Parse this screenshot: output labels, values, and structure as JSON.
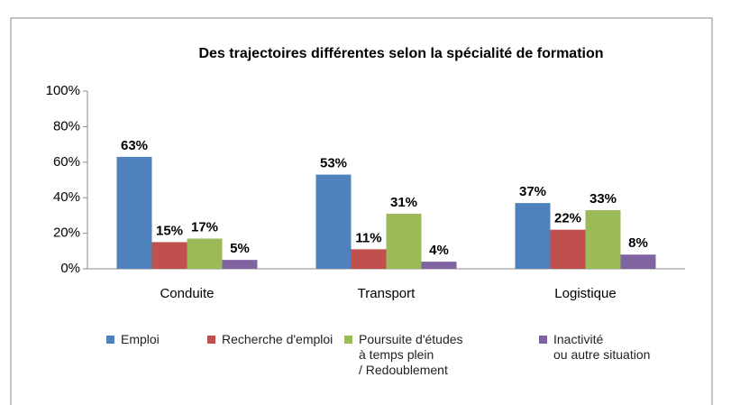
{
  "chart_data": {
    "type": "bar",
    "title": "Des trajectoires différentes selon la spécialité de formation",
    "categories": [
      "Conduite",
      "Transport",
      "Logistique"
    ],
    "series": [
      {
        "name": "Emploi",
        "color": "#4f81bd",
        "values": [
          63,
          53,
          37
        ],
        "value_labels": [
          "63%",
          "53%",
          "37%"
        ]
      },
      {
        "name": "Recherche d'emploi",
        "color": "#c0504d",
        "values": [
          15,
          11,
          22
        ],
        "value_labels": [
          "15%",
          "11%",
          "22%"
        ]
      },
      {
        "name": "Poursuite d'études\nà temps plein\n/ Redoublement",
        "color": "#9bbb59",
        "values": [
          17,
          31,
          33
        ],
        "value_labels": [
          "17%",
          "31%",
          "33%"
        ]
      },
      {
        "name": "Inactivité\nou autre situation",
        "color": "#8064a2",
        "values": [
          5,
          4,
          8
        ],
        "value_labels": [
          "5%",
          "4%",
          "8%"
        ]
      }
    ],
    "ylim": [
      0,
      100
    ],
    "yticks": [
      {
        "value": 0,
        "label": "0%"
      },
      {
        "value": 20,
        "label": "20%"
      },
      {
        "value": 40,
        "label": "40%"
      },
      {
        "value": 60,
        "label": "60%"
      },
      {
        "value": 80,
        "label": "80%"
      },
      {
        "value": 100,
        "label": "100%"
      }
    ],
    "grid": false
  }
}
